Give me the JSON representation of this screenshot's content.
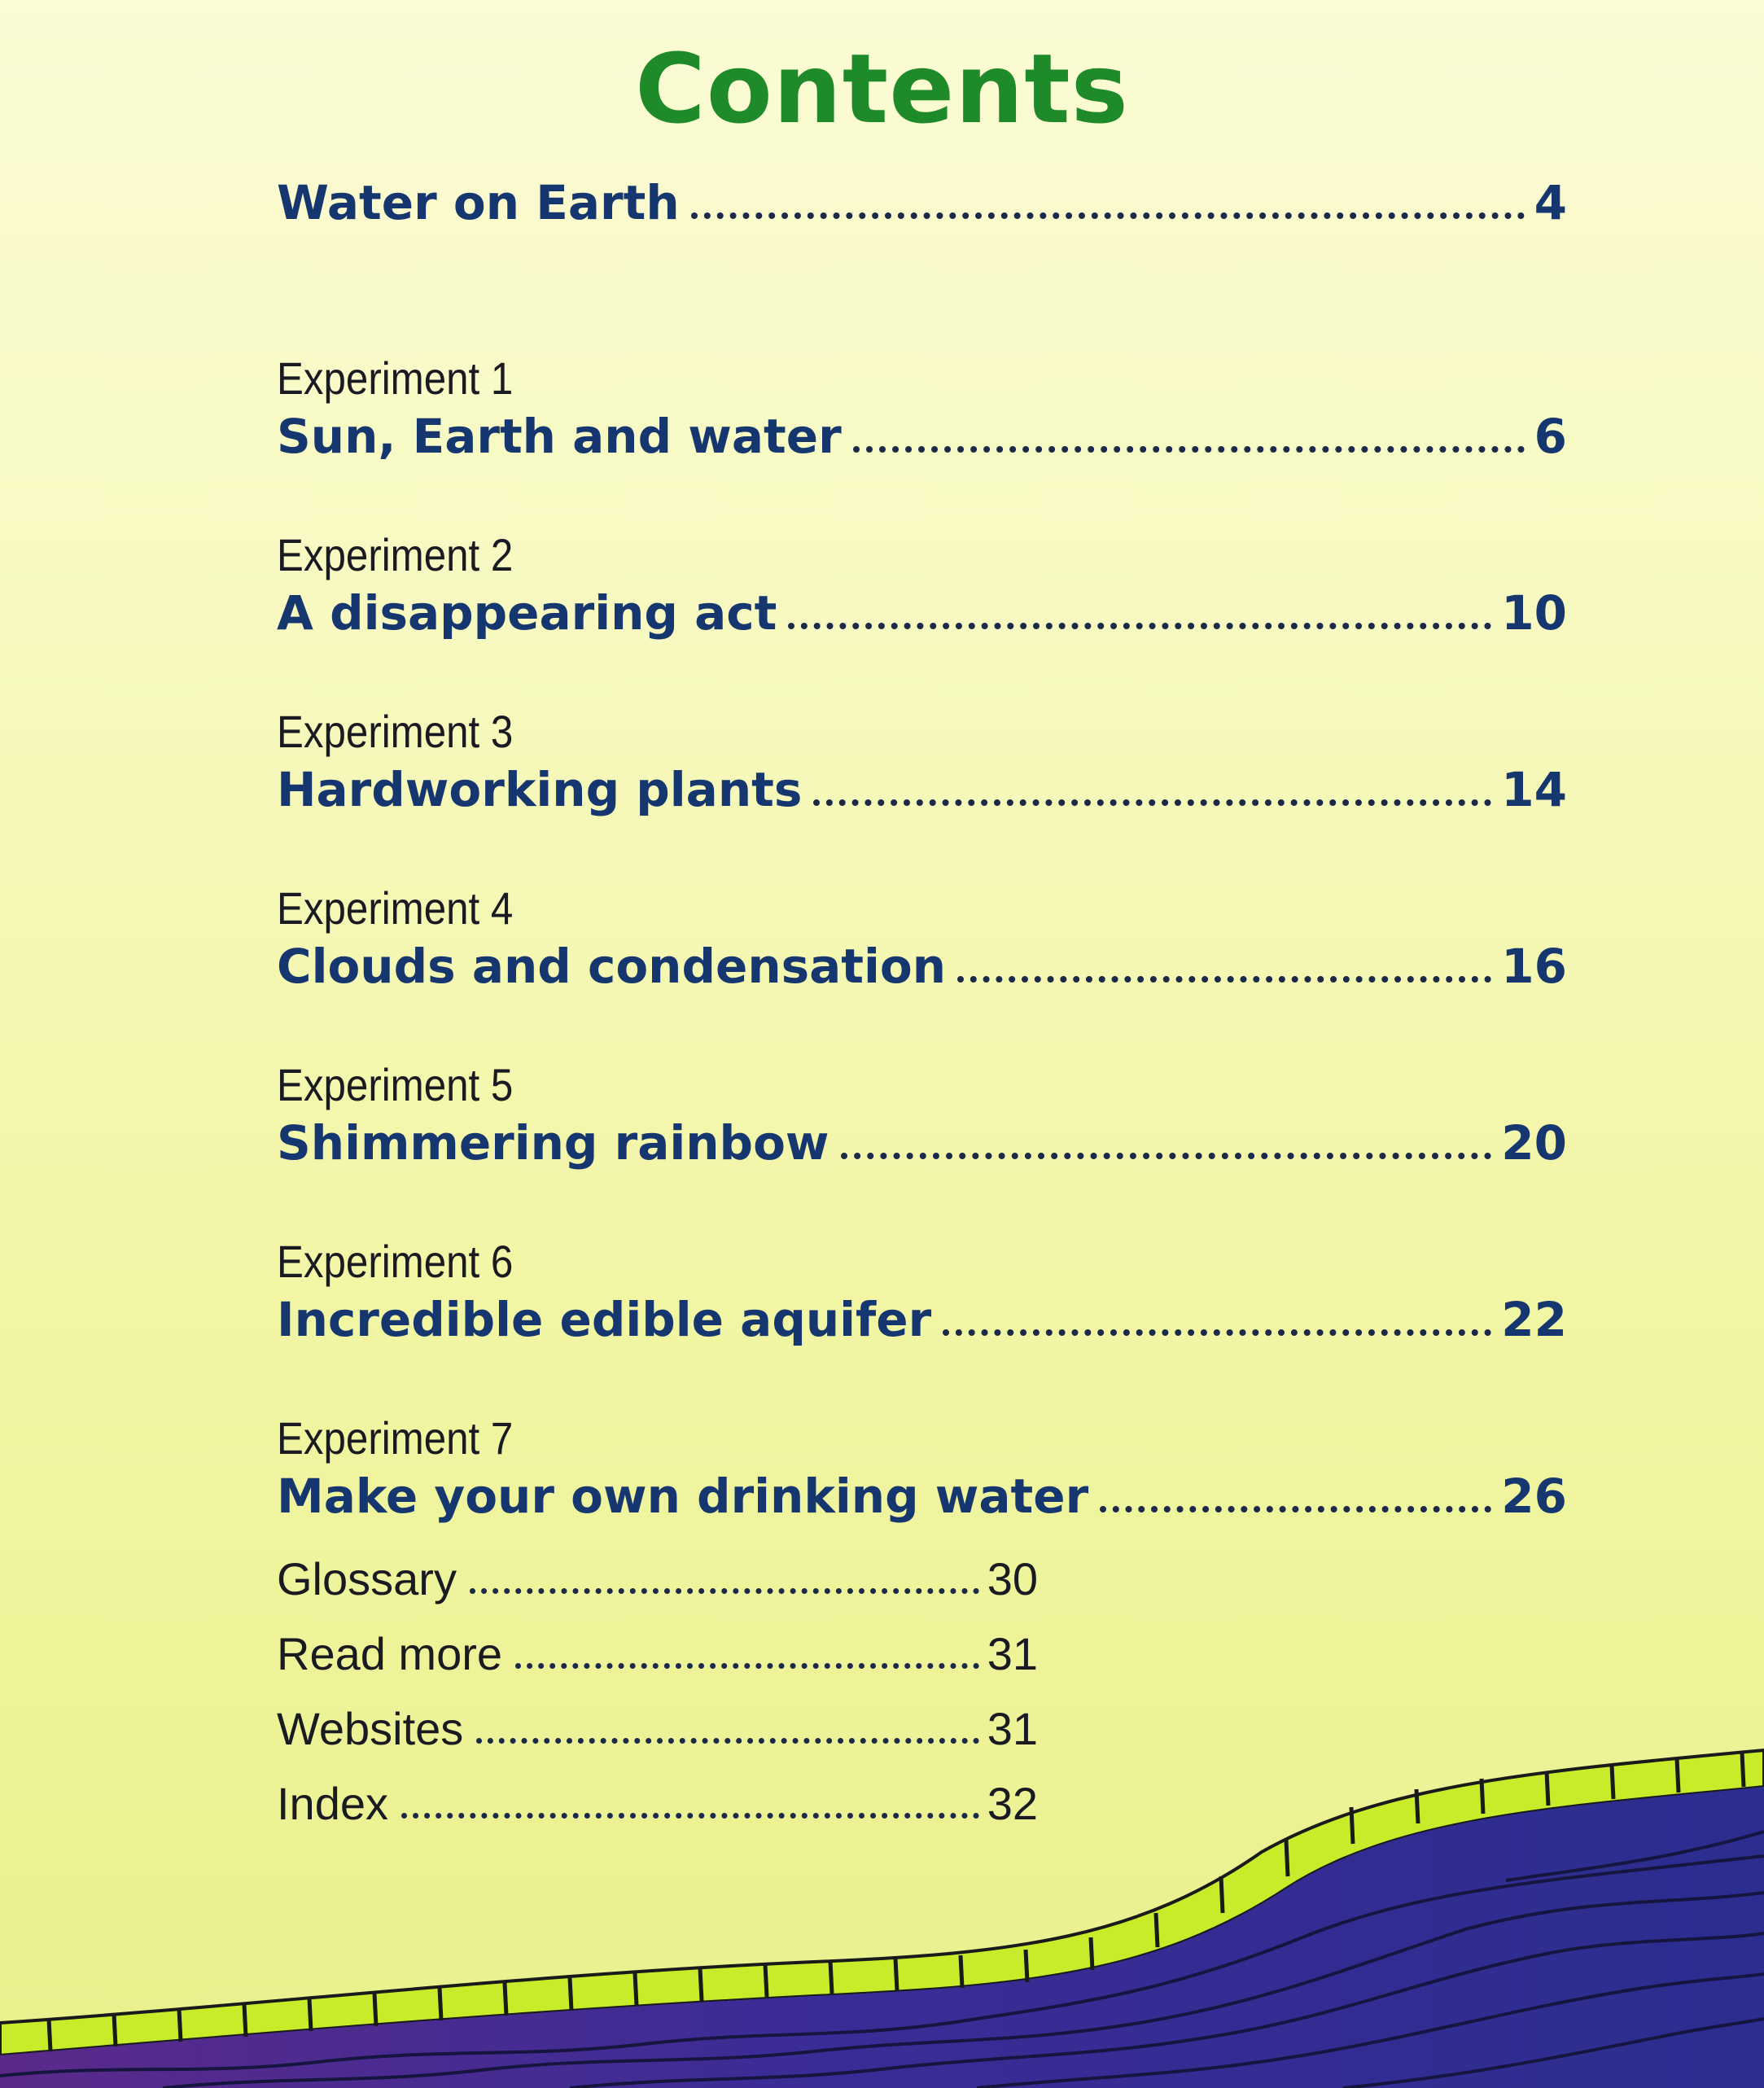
{
  "title": "Contents",
  "entries": [
    {
      "experiment": "",
      "title": "Water on Earth",
      "page": "4"
    },
    {
      "experiment": "Experiment 1",
      "title": "Sun, Earth and water",
      "page": "6"
    },
    {
      "experiment": "Experiment 2",
      "title": "A disappearing act",
      "page": "10"
    },
    {
      "experiment": "Experiment 3",
      "title": "Hardworking plants",
      "page": "14"
    },
    {
      "experiment": "Experiment 4",
      "title": "Clouds and condensation",
      "page": "16"
    },
    {
      "experiment": "Experiment 5",
      "title": "Shimmering rainbow",
      "page": "20"
    },
    {
      "experiment": "Experiment 6",
      "title": "Incredible edible aquifer",
      "page": "22"
    },
    {
      "experiment": "Experiment 7",
      "title": "Make your own drinking water",
      "page": "26"
    }
  ],
  "back_matter": [
    {
      "label": "Glossary",
      "page": "30"
    },
    {
      "label": "Read more",
      "page": "31"
    },
    {
      "label": "Websites",
      "page": "31"
    },
    {
      "label": "Index",
      "page": "32"
    }
  ],
  "colors": {
    "title": "#1f8a2a",
    "heading": "#15366f",
    "text": "#1a1a22",
    "wave_band": "#c8ec2a",
    "wave_deep": "#2b2d8f",
    "wave_purple": "#5a2a8a"
  }
}
